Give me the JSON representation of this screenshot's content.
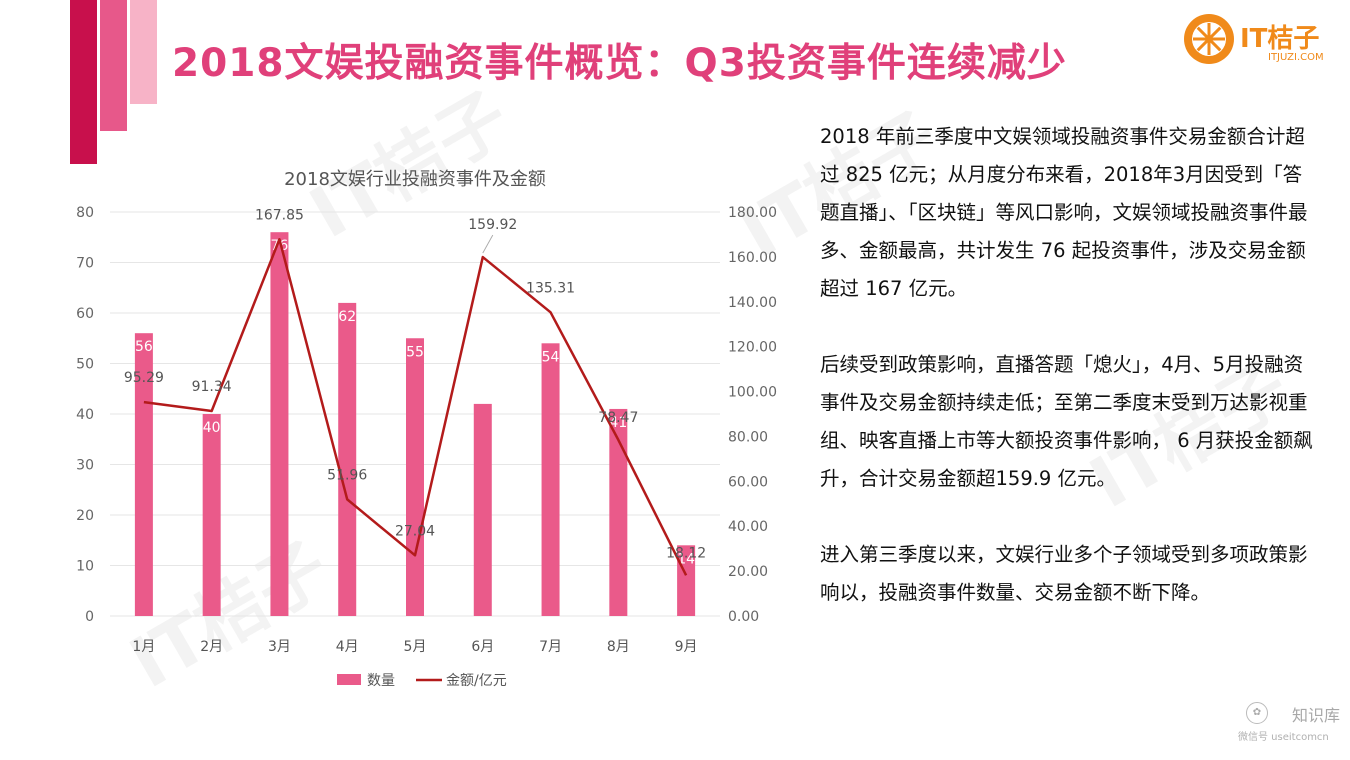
{
  "header": {
    "title": "2018文娱投融资事件概览：Q3投资事件连续减少"
  },
  "logo": {
    "name": "IT桔子",
    "url_text": "ITJUZI.COM",
    "watermark_text": "IT桔子",
    "color": "#f08a1a"
  },
  "chart_data": {
    "type": "bar",
    "title": "2018文娱行业投融资事件及金额",
    "categories": [
      "1月",
      "2月",
      "3月",
      "4月",
      "5月",
      "6月",
      "7月",
      "8月",
      "9月"
    ],
    "series": [
      {
        "name": "数量",
        "type": "bar",
        "axis": "left",
        "color": "#ea5a8a",
        "values": [
          56,
          40,
          76,
          62,
          55,
          42,
          54,
          41,
          14
        ],
        "labels": [
          "56",
          "40",
          "76",
          "62",
          "55",
          "",
          "54",
          "41",
          "14"
        ]
      },
      {
        "name": "金额/亿元",
        "type": "line",
        "axis": "right",
        "color": "#b31b1b",
        "values": [
          95.29,
          91.34,
          167.85,
          51.96,
          27.04,
          159.92,
          135.31,
          78.47,
          18.12
        ],
        "labels": [
          "95.29",
          "91.34",
          "167.85",
          "51.96",
          "27.04",
          "159.92",
          "135.31",
          "78.47",
          "18.12"
        ]
      }
    ],
    "y_left": {
      "range": [
        0,
        80
      ],
      "ticks": [
        "0",
        "10",
        "20",
        "30",
        "40",
        "50",
        "60",
        "70",
        "80"
      ]
    },
    "y_right": {
      "range": [
        0,
        180
      ],
      "ticks": [
        "0.00",
        "20.00",
        "40.00",
        "60.00",
        "80.00",
        "100.00",
        "120.00",
        "140.00",
        "160.00",
        "180.00"
      ]
    },
    "grid": true,
    "legend_position": "bottom"
  },
  "text": {
    "paragraphs": [
      "2018 年前三季度中文娱领域投融资事件交易金额合计超过 825 亿元；从月度分布来看，2018年3月因受到「答题直播」、「区块链」等风口影响，文娱领域投融资事件最多、金额最高，共计发生 76 起投资事件，涉及交易金额超过 167 亿元。",
      "后续受到政策影响，直播答题「熄火」，4月、5月投融资事件及交易金额持续走低；至第二季度末受到万达影视重组、映客直播上市等大额投资事件影响， 6 月获投金额飙升，合计交易金额超159.9 亿元。",
      "进入第三季度以来，文娱行业多个子领域受到多项政策影响以，投融资事件数量、交易金额不断下降。"
    ]
  },
  "corner": {
    "name": "知识库",
    "sub": "微信号 useitcomcn"
  }
}
